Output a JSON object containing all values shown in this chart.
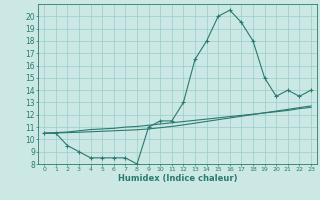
{
  "xlabel": "Humidex (Indice chaleur)",
  "ylabel": "",
  "bg_color": "#cce8e4",
  "grid_color": "#99cccc",
  "line_color": "#2a7a70",
  "xlim": [
    -0.5,
    23.5
  ],
  "ylim": [
    8,
    21
  ],
  "xticks": [
    0,
    1,
    2,
    3,
    4,
    5,
    6,
    7,
    8,
    9,
    10,
    11,
    12,
    13,
    14,
    15,
    16,
    17,
    18,
    19,
    20,
    21,
    22,
    23
  ],
  "yticks": [
    8,
    9,
    10,
    11,
    12,
    13,
    14,
    15,
    16,
    17,
    18,
    19,
    20
  ],
  "main_y": [
    10.5,
    10.5,
    9.5,
    9.0,
    8.5,
    8.5,
    8.5,
    8.5,
    8.0,
    11.0,
    11.5,
    11.5,
    13.0,
    16.5,
    18.0,
    20.0,
    20.5,
    19.5,
    18.0,
    15.0,
    13.5,
    14.0,
    13.5,
    14.0
  ],
  "line1_y": [
    10.5,
    10.55,
    10.6,
    10.7,
    10.8,
    10.85,
    10.9,
    11.0,
    11.05,
    11.15,
    11.25,
    11.35,
    11.45,
    11.55,
    11.65,
    11.75,
    11.85,
    11.95,
    12.05,
    12.15,
    12.25,
    12.35,
    12.5,
    12.6
  ],
  "line2_y": [
    10.5,
    10.52,
    10.55,
    10.58,
    10.62,
    10.66,
    10.7,
    10.74,
    10.78,
    10.85,
    10.95,
    11.05,
    11.18,
    11.32,
    11.46,
    11.6,
    11.74,
    11.88,
    12.02,
    12.16,
    12.3,
    12.44,
    12.58,
    12.72
  ]
}
